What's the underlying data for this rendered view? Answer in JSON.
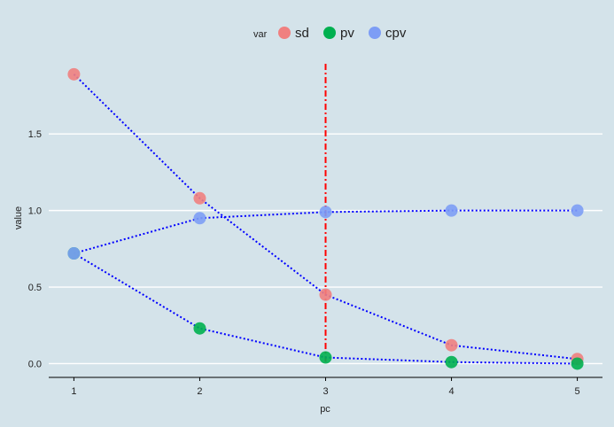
{
  "chart_data": {
    "type": "line",
    "xlabel": "pc",
    "ylabel": "value",
    "x": [
      1,
      2,
      3,
      4,
      5
    ],
    "x_ticks": [
      "1",
      "2",
      "3",
      "4",
      "5"
    ],
    "y_ticks": [
      "0.0",
      "0.5",
      "1.0",
      "1.5"
    ],
    "y_tick_values": [
      0.0,
      0.5,
      1.0,
      1.5
    ],
    "xlim": [
      0.8,
      5.2
    ],
    "ylim": [
      -0.09,
      1.97
    ],
    "grid": "horizontal",
    "legend": {
      "title": "var",
      "position": "top"
    },
    "series": [
      {
        "name": "sd",
        "color": "#f08080",
        "values": [
          1.89,
          1.08,
          0.45,
          0.12,
          0.03
        ]
      },
      {
        "name": "pv",
        "color": "#00b050",
        "values": [
          0.72,
          0.23,
          0.04,
          0.01,
          0.0
        ]
      },
      {
        "name": "cpv",
        "color": "#7d9df5",
        "values": [
          0.72,
          0.95,
          0.99,
          1.0,
          1.0
        ]
      }
    ],
    "line_color": "#0000ff",
    "vline": {
      "x": 3,
      "color": "#ff0000"
    }
  }
}
